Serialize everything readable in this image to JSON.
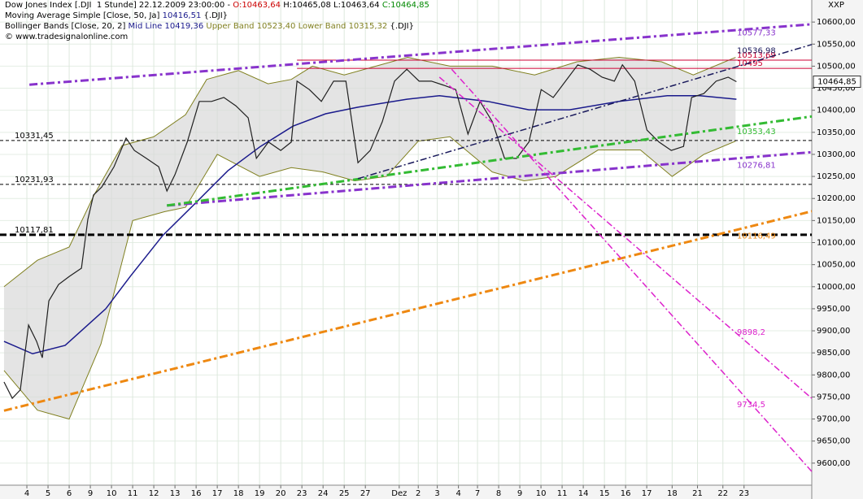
{
  "chart_data": {
    "type": "line",
    "corner_label": "XXP",
    "info": [
      [
        {
          "text": "Dow Jones Index [.DJI  1 Stunde] 22.12.2009 23:00:00 - ",
          "color": "#000000"
        },
        {
          "text": "O:10463,64",
          "color": "#cc0000"
        },
        {
          "text": " H:10465,08 L:10463,64 ",
          "color": "#000000"
        },
        {
          "text": "C:10464,85",
          "color": "#008800"
        }
      ],
      [
        {
          "text": "Moving Average Simple [Close, 50, Ja] ",
          "color": "#000000"
        },
        {
          "text": "10416,51",
          "color": "#1a1a8c"
        },
        {
          "text": " {.DJI}",
          "color": "#000000"
        }
      ],
      [
        {
          "text": "Bollinger Bands [Close, 20, 2] ",
          "color": "#000000"
        },
        {
          "text": "Mid Line 10419,36",
          "color": "#1a1a8c"
        },
        {
          "text": " Upper Band 10523,40 Lower Band 10315,32",
          "color": "#808020"
        },
        {
          "text": " {.DJI}",
          "color": "#000000"
        }
      ],
      [
        {
          "text": "© www.tradesignalonline.com",
          "color": "#000000"
        }
      ]
    ],
    "xlim": [
      -1.27,
      37.1
    ],
    "ylim": [
      9550,
      10650
    ],
    "xticks": [
      {
        "value": 0,
        "label": "4"
      },
      {
        "value": 1,
        "label": "5"
      },
      {
        "value": 2,
        "label": "6"
      },
      {
        "value": 3,
        "label": "9"
      },
      {
        "value": 4,
        "label": "10"
      },
      {
        "value": 5,
        "label": "11"
      },
      {
        "value": 6,
        "label": "12"
      },
      {
        "value": 7,
        "label": "13"
      },
      {
        "value": 8,
        "label": "16"
      },
      {
        "value": 9,
        "label": "17"
      },
      {
        "value": 10,
        "label": "18"
      },
      {
        "value": 11,
        "label": "19"
      },
      {
        "value": 12,
        "label": "20"
      },
      {
        "value": 13,
        "label": "23"
      },
      {
        "value": 14,
        "label": "24"
      },
      {
        "value": 15,
        "label": "25"
      },
      {
        "value": 16,
        "label": "27"
      },
      {
        "value": 17.6,
        "label": "Dez"
      },
      {
        "value": 18.5,
        "label": "2"
      },
      {
        "value": 19.4,
        "label": "3"
      },
      {
        "value": 20.4,
        "label": "4"
      },
      {
        "value": 21.3,
        "label": "7"
      },
      {
        "value": 22.3,
        "label": "8"
      },
      {
        "value": 23.3,
        "label": "9"
      },
      {
        "value": 24.3,
        "label": "10"
      },
      {
        "value": 25.3,
        "label": "11"
      },
      {
        "value": 26.3,
        "label": "14"
      },
      {
        "value": 27.3,
        "label": "15"
      },
      {
        "value": 28.3,
        "label": "16"
      },
      {
        "value": 29.3,
        "label": "17"
      },
      {
        "value": 30.5,
        "label": "18"
      },
      {
        "value": 31.7,
        "label": "21"
      },
      {
        "value": 32.9,
        "label": "22"
      },
      {
        "value": 33.9,
        "label": "23"
      }
    ],
    "yticks": [
      {
        "value": 9600,
        "label": "9600,00"
      },
      {
        "value": 9650,
        "label": "9650,00"
      },
      {
        "value": 9700,
        "label": "9700,00"
      },
      {
        "value": 9750,
        "label": "9750,00"
      },
      {
        "value": 9800,
        "label": "9800,00"
      },
      {
        "value": 9850,
        "label": "9850,00"
      },
      {
        "value": 9900,
        "label": "9900,00"
      },
      {
        "value": 9950,
        "label": "9950,00"
      },
      {
        "value": 10000,
        "label": "10000,00"
      },
      {
        "value": 10050,
        "label": "10050,00"
      },
      {
        "value": 10100,
        "label": "10100,00"
      },
      {
        "value": 10150,
        "label": "10150,00"
      },
      {
        "value": 10200,
        "label": "10200,00"
      },
      {
        "value": 10250,
        "label": "10250,00"
      },
      {
        "value": 10300,
        "label": "10300,00"
      },
      {
        "value": 10350,
        "label": "10350,00"
      },
      {
        "value": 10400,
        "label": "10400,00"
      },
      {
        "value": 10450,
        "label": "10450,00"
      },
      {
        "value": 10500,
        "label": "10500,00"
      },
      {
        "value": 10550,
        "label": "10550,00"
      },
      {
        "value": 10600,
        "label": "10600,00"
      }
    ],
    "grid": true,
    "band": {
      "color": "#d8d8d8",
      "edge": "#808020",
      "upper": {
        "x": [
          -1.08,
          0.5,
          2,
          3.2,
          4.5,
          6,
          7.5,
          8.5,
          10,
          11.4,
          12.5,
          13.5,
          15,
          16.5,
          18,
          20,
          22,
          24,
          26,
          28,
          30,
          31.5,
          33.5
        ],
        "values": [
          10000,
          10060,
          10090,
          10210,
          10320,
          10340,
          10390,
          10470,
          10490,
          10460,
          10470,
          10500,
          10480,
          10500,
          10520,
          10500,
          10500,
          10480,
          10510,
          10520,
          10510,
          10480,
          10520
        ]
      },
      "lower": {
        "x": [
          -1.08,
          0.5,
          2,
          3.5,
          5,
          6.5,
          7.5,
          9,
          11,
          12.5,
          14,
          15.5,
          17,
          18.5,
          20,
          22,
          23.5,
          25,
          27,
          29,
          30.5,
          32,
          33.5
        ],
        "values": [
          9810,
          9720,
          9700,
          9870,
          10150,
          10170,
          10180,
          10300,
          10250,
          10270,
          10260,
          10240,
          10250,
          10330,
          10340,
          10260,
          10240,
          10250,
          10310,
          10310,
          10250,
          10300,
          10330
        ]
      }
    },
    "series": [
      {
        "color": "#1a1a8c",
        "width": 1.5,
        "x": [
          -1.08,
          0.27,
          1.81,
          3.73,
          4.88,
          6.42,
          7.96,
          9.5,
          11.04,
          12.58,
          14.12,
          15.65,
          17.96,
          19.5,
          21.8,
          23.73,
          25.65,
          27.96,
          30.27,
          31.81,
          33.54
        ],
        "values": [
          9876,
          9848,
          9867,
          9950,
          10023,
          10116,
          10189,
          10263,
          10318,
          10364,
          10392,
          10407,
          10425,
          10433,
          10420,
          10401,
          10401,
          10420,
          10433,
          10433,
          10425
        ]
      },
      {
        "color": "#202020",
        "width": 1.2,
        "x": [
          -1.08,
          -0.69,
          -0.31,
          0.08,
          0.46,
          0.73,
          1.04,
          1.5,
          2.0,
          2.58,
          2.88,
          3.15,
          3.54,
          4.12,
          4.69,
          5.08,
          5.65,
          6.23,
          6.62,
          7.0,
          7.58,
          8.15,
          8.73,
          9.31,
          9.88,
          10.46,
          10.85,
          11.42,
          12.0,
          12.5,
          12.77,
          13.35,
          13.92,
          14.5,
          15.08,
          15.65,
          16.23,
          16.8,
          17.38,
          17.96,
          18.54,
          19.12,
          19.69,
          20.27,
          20.85,
          21.42,
          22.0,
          22.58,
          23.15,
          23.73,
          24.31,
          24.88,
          25.46,
          26.04,
          26.62,
          27.19,
          27.77,
          28.15,
          28.73,
          29.31,
          29.88,
          30.46,
          31.04,
          31.42,
          32.0,
          32.58,
          33.15,
          33.54
        ],
        "values": [
          9784,
          9747,
          9766,
          9913,
          9876,
          9839,
          9968,
          10005,
          10023,
          10042,
          10152,
          10208,
          10226,
          10272,
          10337,
          10309,
          10291,
          10272,
          10217,
          10254,
          10328,
          10420,
          10420,
          10429,
          10410,
          10383,
          10291,
          10328,
          10309,
          10328,
          10466,
          10447,
          10420,
          10466,
          10466,
          10281,
          10309,
          10374,
          10466,
          10493,
          10466,
          10466,
          10457,
          10447,
          10346,
          10420,
          10374,
          10291,
          10291,
          10328,
          10447,
          10429,
          10466,
          10503,
          10493,
          10475,
          10466,
          10503,
          10466,
          10355,
          10328,
          10309,
          10318,
          10429,
          10438,
          10466,
          10475,
          10464.85
        ]
      }
    ],
    "last_price": {
      "value": 10464.85,
      "label": "10464,85"
    },
    "levels": [
      {
        "value": 10331.45,
        "label": "10331,45",
        "color": "#000000",
        "dash": "4 3",
        "width": 1,
        "label_side": "left"
      },
      {
        "value": 10231.93,
        "label": "10231,93",
        "color": "#000000",
        "dash": "4 3",
        "width": 1,
        "label_side": "left"
      },
      {
        "value": 10117.81,
        "label": "10117,81",
        "color": "#000000",
        "dash": "8 4",
        "width": 3,
        "label_side": "left"
      },
      {
        "value": 10513.69,
        "label": "10513,69",
        "color": "#cc0033",
        "dash": "none",
        "width": 1,
        "label_side": "right"
      },
      {
        "value": 10495,
        "label": "10495",
        "color": "#cc0033",
        "dash": "none",
        "width": 1,
        "label_side": "right"
      }
    ],
    "trendlines": [
      {
        "x": [
          0.12,
          37.1
        ],
        "values": [
          10458,
          10595
        ],
        "color": "#8833cc",
        "width": 3,
        "dash": "10 4 3 4",
        "label": {
          "value": 10577.33,
          "label": "10577,33"
        }
      },
      {
        "x": [
          6.62,
          37.1
        ],
        "values": [
          10184,
          10305
        ],
        "color": "#8833cc",
        "width": 3,
        "dash": "10 4 3 4",
        "label": {
          "value": 10276.81,
          "label": "10276,81"
        }
      },
      {
        "x": [
          6.62,
          37.1
        ],
        "values": [
          10184,
          10386
        ],
        "color": "#33bb33",
        "width": 3,
        "dash": "10 4 3 4",
        "label": {
          "value": 10353.43,
          "label": "10353,43"
        }
      },
      {
        "x": [
          -1.08,
          37.1
        ],
        "values": [
          9719,
          10171
        ],
        "color": "#ee8811",
        "width": 3,
        "dash": "10 4 3 4",
        "label": {
          "value": 10116.49,
          "label": "10116,49"
        }
      },
      {
        "x": [
          15.65,
          37.1
        ],
        "values": [
          10245,
          10549
        ],
        "color": "#1a1a5c",
        "width": 1.5,
        "dash": "8 3 2 3",
        "label": {
          "value": 10536.98,
          "label": "10536,98"
        }
      },
      {
        "x": [
          19.5,
          37.1
        ],
        "values": [
          10475,
          9747
        ],
        "color": "#dd22cc",
        "width": 1.5,
        "dash": "8 3 2 3",
        "label": {
          "value": 9898.2,
          "label": "9898,2"
        }
      },
      {
        "x": [
          20.08,
          37.1
        ],
        "values": [
          10493,
          9581
        ],
        "color": "#dd22cc",
        "width": 1.5,
        "dash": "8 3 2 3",
        "label": {
          "value": 9734.5,
          "label": "9734,5"
        }
      }
    ]
  }
}
